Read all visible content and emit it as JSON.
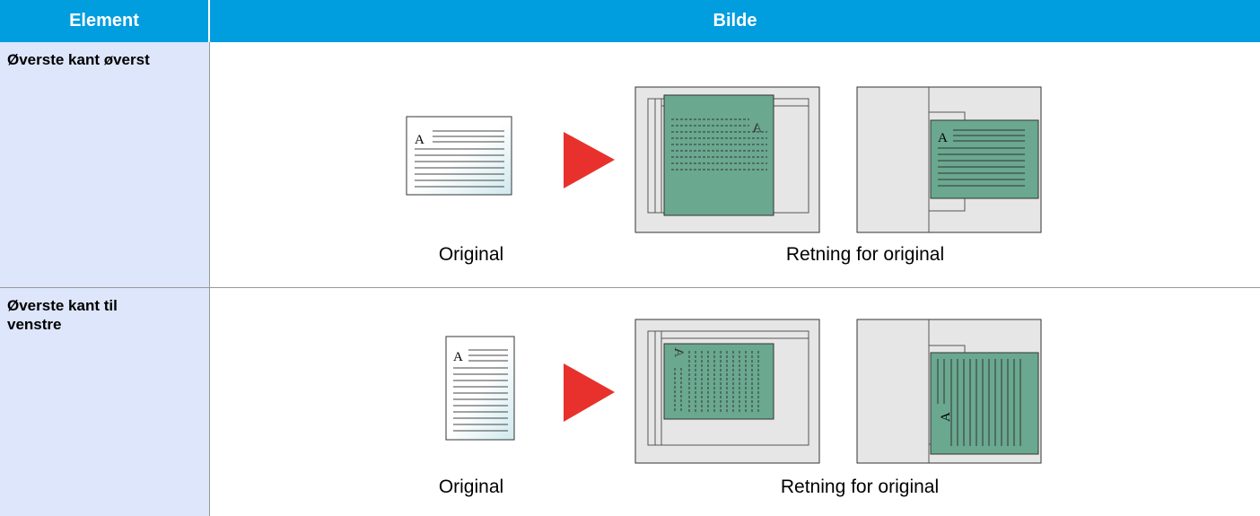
{
  "table": {
    "header": [
      "Element",
      "Bilde"
    ],
    "rows": [
      {
        "element": "Øverste kant øverst",
        "captions": [
          "Original",
          "Retning for original"
        ]
      },
      {
        "element": "Øverste kant til venstre",
        "captions": [
          "Original",
          "Retning for original"
        ]
      }
    ]
  },
  "illustration_letter": "A"
}
